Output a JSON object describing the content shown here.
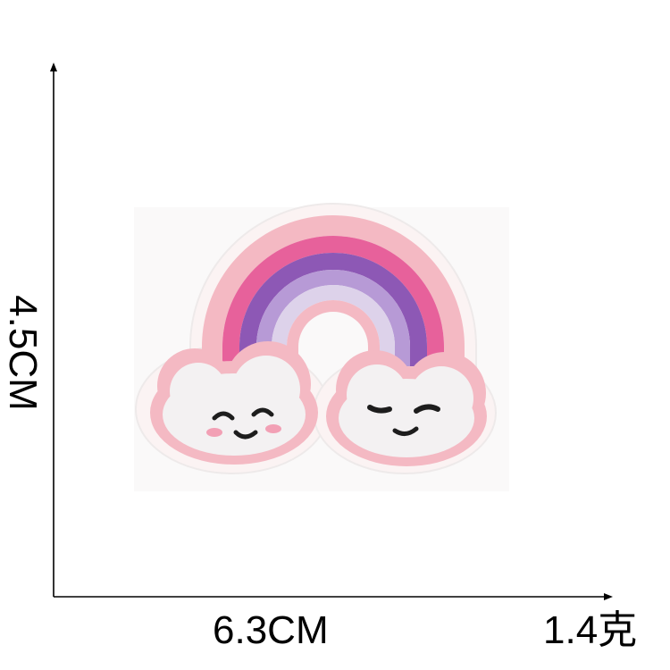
{
  "dimensions": {
    "height_label": "4.5CM",
    "width_label": "6.3CM",
    "weight_label": "1.4克"
  },
  "colors": {
    "background": "#ffffff",
    "felt_backing": "#fbf3f3",
    "outer_pink": "#f4b9c3",
    "hot_pink": "#e7619b",
    "dark_purple": "#8d58b5",
    "lavender": "#b79ad6",
    "pale_lilac": "#ddd2ea",
    "cloud_white": "#f3f1f2",
    "face": "#1d1d1d",
    "cheek": "#f2a0b5"
  }
}
